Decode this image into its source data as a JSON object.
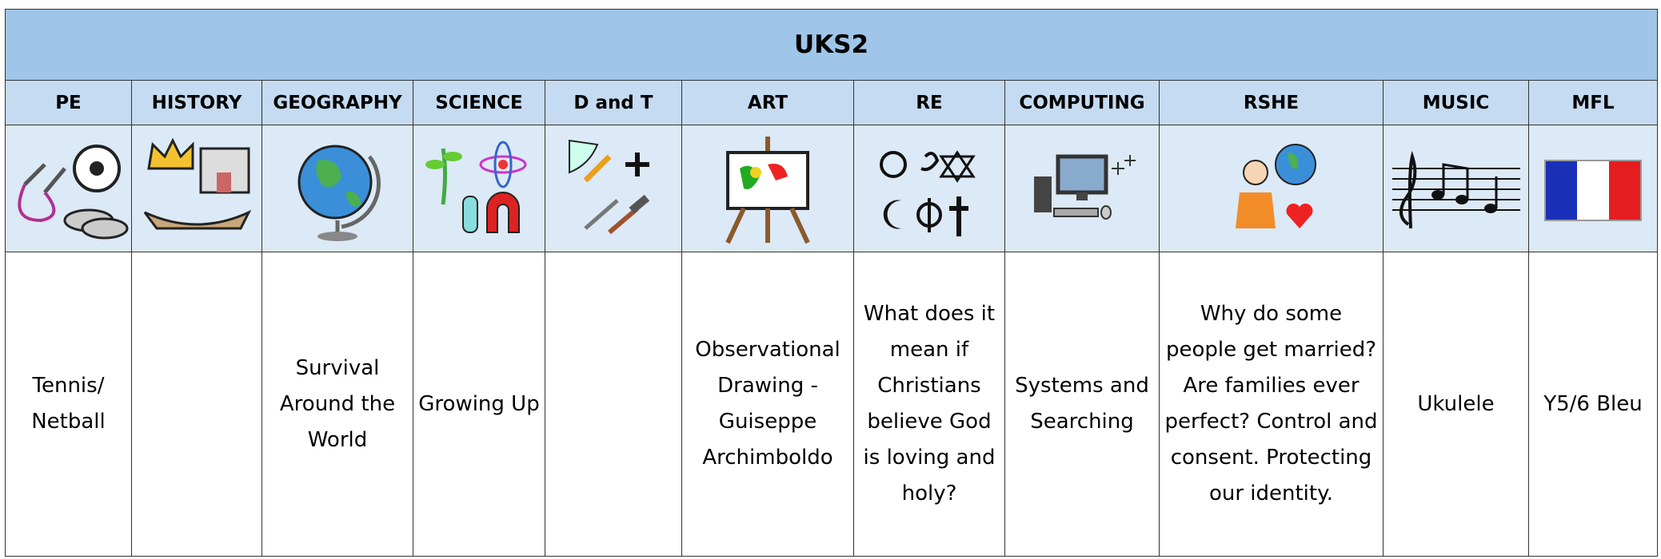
{
  "table": {
    "title": "UKS2",
    "headers": [
      "PE",
      "HISTORY",
      "GEOGRAPHY",
      "SCIENCE",
      "D and T",
      "ART",
      "RE",
      "COMPUTING",
      "RSHE",
      "MUSIC",
      "MFL"
    ],
    "topics": [
      "Tennis/ Netball",
      null,
      "Survival Around the World",
      "Growing Up",
      null,
      "Observational Drawing - Guiseppe Archimboldo",
      "What does it mean if Christians believe God is loving and holy?",
      "Systems and Searching",
      "Why do some people get married? Are families ever perfect? Control and consent. Protecting our identity.",
      "Ukulele",
      "Y5/6 Bleu"
    ]
  }
}
